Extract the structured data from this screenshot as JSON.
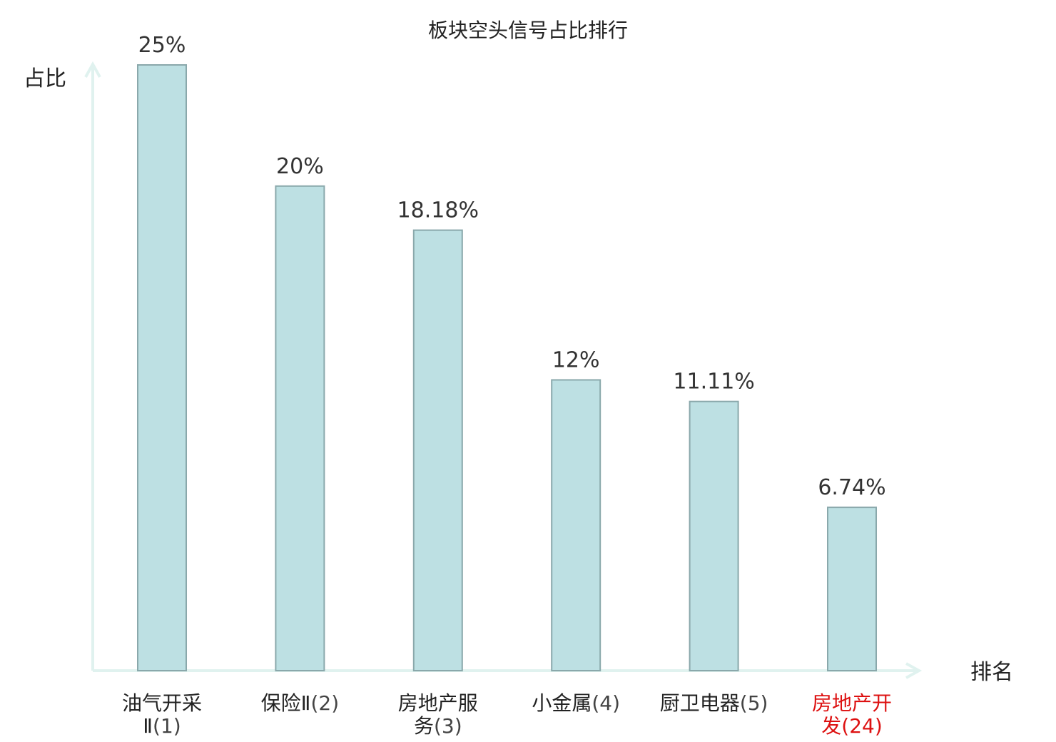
{
  "chart_data": {
    "type": "bar",
    "title": "板块空头信号占比排行",
    "ylabel": "占比",
    "xlabel": "排名",
    "categories": [
      {
        "name_lines": [
          "油气开采",
          "Ⅱ"
        ],
        "rank": "(1)",
        "highlight": false
      },
      {
        "name_lines": [
          "保险Ⅱ"
        ],
        "rank": "(2)",
        "highlight": false
      },
      {
        "name_lines": [
          "房地产服",
          "务"
        ],
        "rank": "(3)",
        "highlight": false
      },
      {
        "name_lines": [
          "小金属"
        ],
        "rank": "(4)",
        "highlight": false
      },
      {
        "name_lines": [
          "厨卫电器"
        ],
        "rank": "(5)",
        "highlight": false
      },
      {
        "name_lines": [
          "房地产开",
          "发"
        ],
        "rank": "(24)",
        "highlight": true
      }
    ],
    "values": [
      25,
      20,
      18.18,
      12,
      11.11,
      6.74
    ],
    "value_labels": [
      "25%",
      "20%",
      "18.18%",
      "12%",
      "11.11%",
      "6.74%"
    ],
    "ylim": [
      0,
      25
    ],
    "grid": false,
    "colors": {
      "bar_fill": "#bde0e3",
      "bar_stroke": "#8aa8ab",
      "axis": "#e0f2ef",
      "text": "#222222",
      "rank_text": "#444444",
      "highlight": "#dd1111"
    }
  }
}
